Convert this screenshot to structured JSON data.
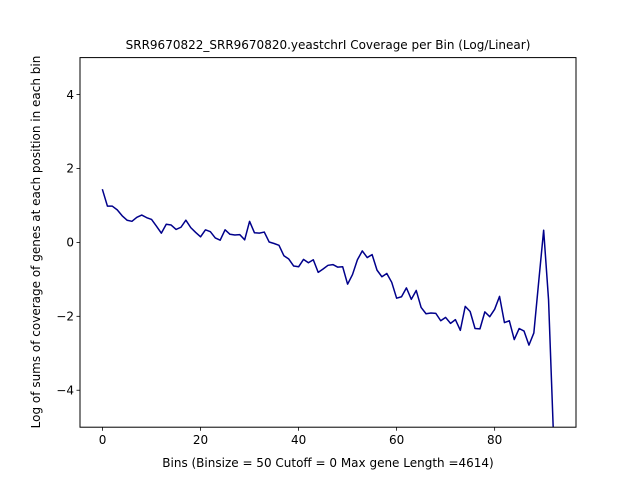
{
  "chart_data": {
    "type": "line",
    "title": "SRR9670822_SRR9670820.yeastchrI Coverage per Bin (Log/Linear)",
    "xlabel": "Bins  (Binsize = 50 Cutoff = 0 Max gene Length =4614)",
    "ylabel": "Log of sums of coverage of genes at each position in each bin",
    "xlim": [
      -4.6,
      96.6
    ],
    "ylim": [
      -5,
      5
    ],
    "xticks": [
      0,
      20,
      40,
      60,
      80
    ],
    "xtick_labels": [
      "0",
      "20",
      "40",
      "60",
      "80"
    ],
    "yticks": [
      -4,
      -2,
      0,
      2,
      4
    ],
    "ytick_labels": [
      "−4",
      "−2",
      "0",
      "2",
      "4"
    ],
    "grid": false,
    "line_color": "#00008b",
    "series": [
      {
        "x": [
          0,
          1,
          2,
          3,
          4,
          5,
          6,
          7,
          8,
          9,
          10,
          11,
          12,
          13,
          14,
          15,
          16,
          17,
          18,
          19,
          20,
          21,
          22,
          23,
          24,
          25,
          26,
          27,
          28,
          29,
          30,
          31,
          32,
          33,
          34,
          35,
          36,
          37,
          38,
          39,
          40,
          41,
          42,
          43,
          44,
          45,
          46,
          47,
          48,
          49,
          50,
          51,
          52,
          53,
          54,
          55,
          56,
          57,
          58,
          59,
          60,
          61,
          62,
          63,
          64,
          65,
          66,
          67,
          68,
          69,
          70,
          71,
          72,
          73,
          74,
          75,
          76,
          77,
          78,
          79,
          80,
          81,
          82,
          83,
          84,
          85,
          86,
          87,
          88,
          89,
          90,
          91,
          92
        ],
        "values": [
          1.42,
          0.98,
          0.98,
          0.88,
          0.72,
          0.6,
          0.57,
          0.68,
          0.74,
          0.67,
          0.62,
          0.44,
          0.25,
          0.49,
          0.47,
          0.35,
          0.41,
          0.6,
          0.4,
          0.27,
          0.15,
          0.34,
          0.29,
          0.12,
          0.06,
          0.34,
          0.22,
          0.2,
          0.21,
          0.07,
          0.57,
          0.26,
          0.25,
          0.28,
          0.01,
          -0.03,
          -0.08,
          -0.36,
          -0.45,
          -0.64,
          -0.66,
          -0.46,
          -0.55,
          -0.47,
          -0.81,
          -0.72,
          -0.62,
          -0.6,
          -0.67,
          -0.66,
          -1.13,
          -0.87,
          -0.47,
          -0.23,
          -0.41,
          -0.33,
          -0.75,
          -0.93,
          -0.84,
          -1.08,
          -1.51,
          -1.47,
          -1.23,
          -1.54,
          -1.3,
          -1.76,
          -1.93,
          -1.91,
          -1.92,
          -2.12,
          -2.03,
          -2.19,
          -2.09,
          -2.38,
          -1.73,
          -1.87,
          -2.33,
          -2.34,
          -1.88,
          -2.01,
          -1.81,
          -1.46,
          -2.17,
          -2.12,
          -2.63,
          -2.33,
          -2.4,
          -2.78,
          -2.45,
          -1.05,
          0.33,
          -1.55,
          -5.2
        ]
      }
    ]
  }
}
